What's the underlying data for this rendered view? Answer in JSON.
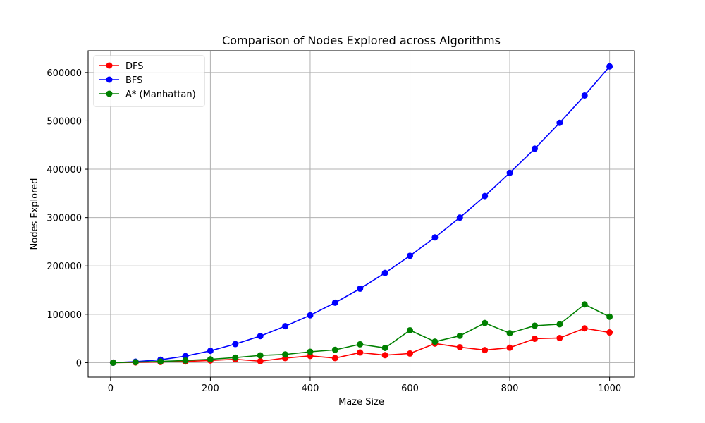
{
  "chart_data": {
    "type": "line",
    "title": "Comparison of Nodes Explored across Algorithms",
    "xlabel": "Maze Size",
    "ylabel": "Nodes Explored",
    "xlim": [
      -45,
      1050
    ],
    "ylim": [
      -30000,
      645000
    ],
    "xticks": [
      0,
      200,
      400,
      600,
      800,
      1000
    ],
    "yticks": [
      0,
      100000,
      200000,
      300000,
      400000,
      500000,
      600000
    ],
    "grid": true,
    "legend_position": "top-left",
    "x": [
      5,
      50,
      100,
      150,
      200,
      250,
      300,
      350,
      400,
      450,
      500,
      550,
      600,
      650,
      700,
      750,
      800,
      850,
      900,
      950,
      1000
    ],
    "series": [
      {
        "name": "DFS",
        "color": "#ff0000",
        "values": [
          0,
          500,
          1500,
          2500,
          4500,
          7000,
          3000,
          9500,
          14000,
          9500,
          21000,
          15500,
          19000,
          39500,
          32000,
          26000,
          31000,
          49500,
          51000,
          71000,
          62500
        ]
      },
      {
        "name": "BFS",
        "color": "#0000ff",
        "values": [
          0,
          2000,
          6000,
          13500,
          24500,
          38500,
          55000,
          75500,
          98000,
          124000,
          153000,
          185500,
          221000,
          259000,
          300000,
          344500,
          392500,
          442500,
          496000,
          552500,
          612500
        ]
      },
      {
        "name": "A* (Manhattan)",
        "color": "#008000",
        "values": [
          0,
          1000,
          2500,
          4500,
          7000,
          10500,
          15000,
          17000,
          22500,
          26500,
          38000,
          30500,
          67000,
          43500,
          55500,
          82000,
          61000,
          76500,
          79500,
          120500,
          95000
        ]
      }
    ]
  }
}
